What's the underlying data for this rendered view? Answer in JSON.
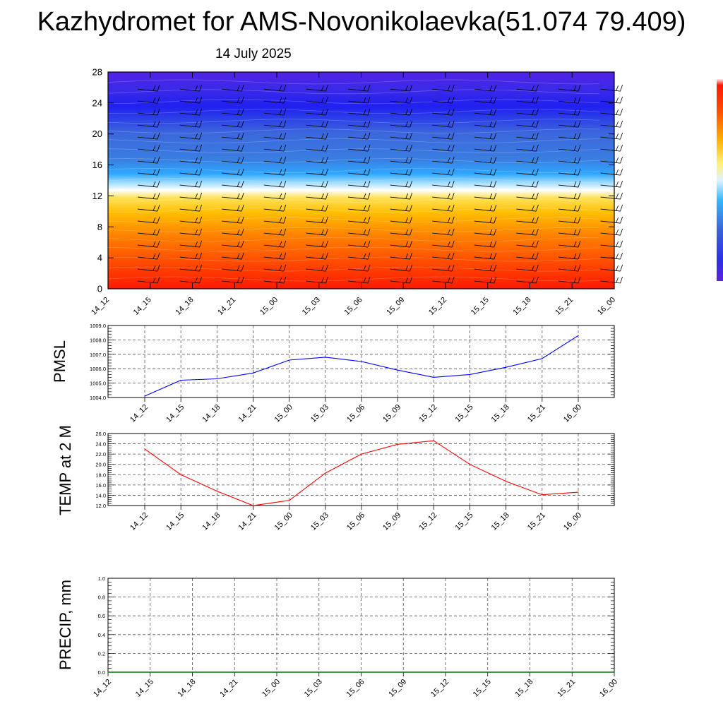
{
  "title": "Kazhydromet for AMS-Novonikolaevka(51.074 79.409)",
  "subtitle": "14 July 2025",
  "colors": {
    "pmsl_line": "#0000ff",
    "temp_line": "#ff0000",
    "precip_line": "#007700",
    "grid": "#555555",
    "colormap": [
      "#ff1a00",
      "#ff5a00",
      "#ff9a00",
      "#ffd000",
      "#fff27a",
      "#ffffff",
      "#bfe8ff",
      "#33b8ff",
      "#3a7de0",
      "#3b62d8",
      "#2e2ee6",
      "#5a22e0"
    ]
  },
  "chart_data": [
    {
      "id": "cross-section",
      "type": "heatmap",
      "title": "",
      "xlabel": "",
      "ylabel": "",
      "x_ticks": [
        "14_12",
        "14_15",
        "14_18",
        "14_21",
        "15_00",
        "15_03",
        "15_06",
        "15_09",
        "15_12",
        "15_15",
        "15_18",
        "15_21",
        "16_00"
      ],
      "y_ticks": [
        0,
        4,
        8,
        12,
        16,
        20,
        24,
        28
      ],
      "ylim": [
        0,
        28
      ],
      "overlay": "wind barbs",
      "colorbar": "right, unlabeled"
    },
    {
      "id": "pmsl",
      "type": "line",
      "ylabel": "PMSL",
      "categories": [
        "14_12",
        "14_15",
        "14_18",
        "14_21",
        "15_00",
        "15_03",
        "15_06",
        "15_09",
        "15_12",
        "15_15",
        "15_18",
        "15_21",
        "16_00"
      ],
      "values": [
        1004.1,
        1005.2,
        1005.3,
        1005.7,
        1006.6,
        1006.8,
        1006.5,
        1005.9,
        1005.4,
        1005.6,
        1006.1,
        1006.7,
        1008.3
      ],
      "y_ticks": [
        "1004.0",
        "1005.0",
        "1006.0",
        "1007.0",
        "1008.0",
        "1009.0"
      ],
      "ylim": [
        1004.0,
        1009.0
      ],
      "grid": true
    },
    {
      "id": "temp",
      "type": "line",
      "ylabel": "TEMP at 2 M",
      "categories": [
        "14_12",
        "14_15",
        "14_18",
        "14_21",
        "15_00",
        "15_03",
        "15_06",
        "15_09",
        "15_12",
        "15_15",
        "15_18",
        "15_21",
        "16_00"
      ],
      "values": [
        23.0,
        18.0,
        14.8,
        12.0,
        13.0,
        18.3,
        22.0,
        23.9,
        24.6,
        20.0,
        16.7,
        14.1,
        14.6
      ],
      "y_ticks": [
        "12.0",
        "14.0",
        "16.0",
        "18.0",
        "20.0",
        "22.0",
        "24.0",
        "26.0"
      ],
      "ylim": [
        12.0,
        26.0
      ],
      "grid": true
    },
    {
      "id": "precip",
      "type": "line",
      "ylabel": "PRECIP, mm",
      "categories": [
        "14_12",
        "14_15",
        "14_18",
        "14_21",
        "15_00",
        "15_03",
        "15_06",
        "15_09",
        "15_12",
        "15_15",
        "15_18",
        "15_21",
        "16_00"
      ],
      "values": [
        0,
        0,
        0,
        0,
        0,
        0,
        0,
        0,
        0,
        0,
        0,
        0,
        0
      ],
      "y_ticks": [
        "0.0",
        "0.2",
        "0.4",
        "0.6",
        "0.8",
        "1.0"
      ],
      "ylim": [
        0.0,
        1.0
      ],
      "grid": true
    }
  ]
}
